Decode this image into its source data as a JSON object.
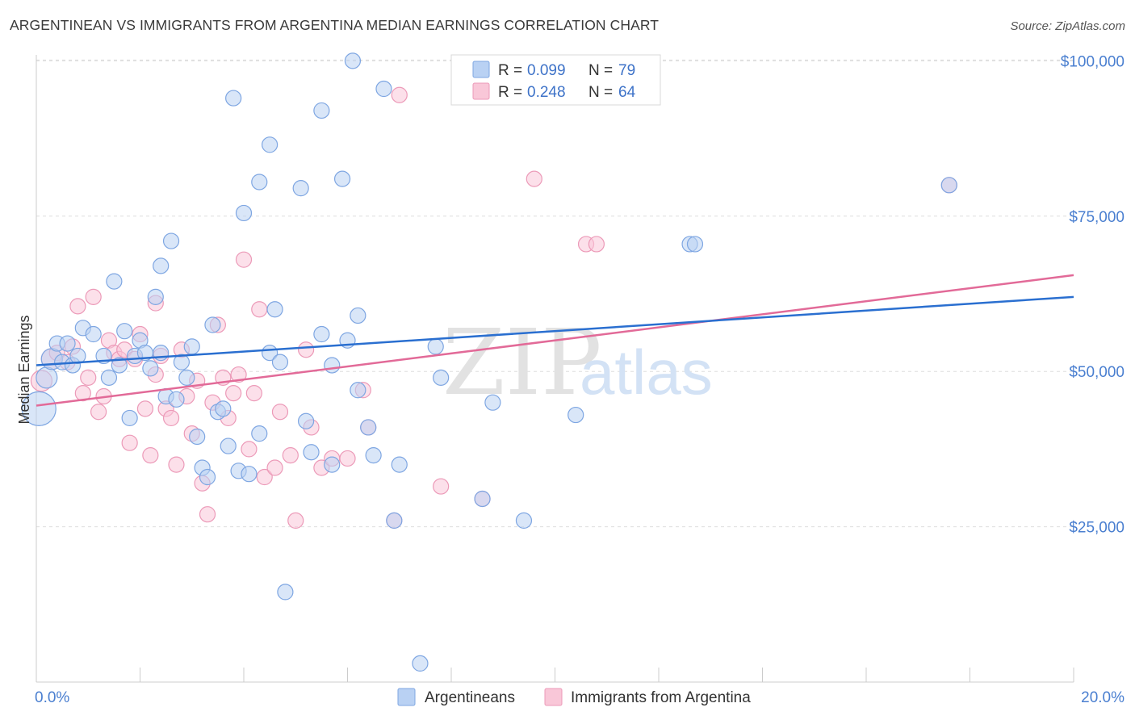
{
  "header": {
    "title": "ARGENTINEAN VS IMMIGRANTS FROM ARGENTINA MEDIAN EARNINGS CORRELATION CHART",
    "source": "Source: ZipAtlas.com"
  },
  "watermark": {
    "zip": "ZIP",
    "atlas": "atlas"
  },
  "colors": {
    "blue_fill": "#b9d1f3",
    "blue_stroke": "#7ea6e2",
    "blue_line": "#2a6fd0",
    "pink_fill": "#f9c7d8",
    "pink_stroke": "#ec9ab8",
    "pink_line": "#e26a98",
    "tick_text": "#4a7fd0",
    "grid": "#dddddd"
  },
  "legend": {
    "rows": [
      {
        "r_label": "R =",
        "r_value": "0.099",
        "n_label": "N =",
        "n_value": "79"
      },
      {
        "r_label": "R =",
        "r_value": "0.248",
        "n_label": "N =",
        "n_value": "64"
      }
    ]
  },
  "chart_data": {
    "type": "scatter",
    "title": "ARGENTINEAN VS IMMIGRANTS FROM ARGENTINA MEDIAN EARNINGS CORRELATION CHART",
    "xlabel": "",
    "ylabel": "Median Earnings",
    "xlim": [
      0,
      20
    ],
    "ylim": [
      0,
      102000
    ],
    "x_tick_labels": [
      "0.0%",
      "20.0%"
    ],
    "y_ticks": [
      25000,
      50000,
      75000,
      100000
    ],
    "y_tick_labels": [
      "$25,000",
      "$50,000",
      "$75,000",
      "$100,000"
    ],
    "grid": true,
    "series": [
      {
        "name": "Argentineans",
        "r": 0.099,
        "n": 79,
        "trend": {
          "x": [
            0,
            20
          ],
          "y": [
            51000,
            62000
          ]
        },
        "points": [
          [
            0.05,
            44000
          ],
          [
            0.2,
            49000
          ],
          [
            0.3,
            52000
          ],
          [
            0.4,
            54500
          ],
          [
            0.5,
            51500
          ],
          [
            0.6,
            54500
          ],
          [
            0.7,
            51000
          ],
          [
            0.8,
            52500
          ],
          [
            0.9,
            57000
          ],
          [
            1.1,
            56000
          ],
          [
            1.3,
            52500
          ],
          [
            1.4,
            49000
          ],
          [
            1.5,
            64500
          ],
          [
            1.6,
            51000
          ],
          [
            1.7,
            56500
          ],
          [
            1.8,
            42500
          ],
          [
            1.9,
            52500
          ],
          [
            2.0,
            55000
          ],
          [
            2.1,
            53000
          ],
          [
            2.2,
            50500
          ],
          [
            2.3,
            62000
          ],
          [
            2.4,
            53000
          ],
          [
            2.4,
            67000
          ],
          [
            2.5,
            46000
          ],
          [
            2.6,
            71000
          ],
          [
            2.7,
            45500
          ],
          [
            2.8,
            51500
          ],
          [
            2.9,
            49000
          ],
          [
            3.0,
            54000
          ],
          [
            3.1,
            39500
          ],
          [
            3.2,
            34500
          ],
          [
            3.3,
            33000
          ],
          [
            3.4,
            57500
          ],
          [
            3.5,
            43500
          ],
          [
            3.6,
            44000
          ],
          [
            3.7,
            38000
          ],
          [
            3.8,
            94000
          ],
          [
            3.9,
            34000
          ],
          [
            4.0,
            75500
          ],
          [
            4.1,
            33500
          ],
          [
            4.3,
            40000
          ],
          [
            4.3,
            80500
          ],
          [
            4.5,
            86500
          ],
          [
            4.5,
            53000
          ],
          [
            4.6,
            60000
          ],
          [
            4.7,
            51500
          ],
          [
            4.8,
            14500
          ],
          [
            5.1,
            79500
          ],
          [
            5.2,
            42000
          ],
          [
            5.3,
            37000
          ],
          [
            5.5,
            56000
          ],
          [
            5.5,
            92000
          ],
          [
            5.7,
            35000
          ],
          [
            5.7,
            51000
          ],
          [
            5.9,
            81000
          ],
          [
            6.0,
            55000
          ],
          [
            6.1,
            100000
          ],
          [
            6.2,
            47000
          ],
          [
            6.2,
            59000
          ],
          [
            6.4,
            41000
          ],
          [
            6.5,
            36500
          ],
          [
            6.7,
            95500
          ],
          [
            6.9,
            26000
          ],
          [
            7.0,
            35000
          ],
          [
            7.4,
            3000
          ],
          [
            7.7,
            54000
          ],
          [
            7.8,
            49000
          ],
          [
            8.6,
            29500
          ],
          [
            8.8,
            45000
          ],
          [
            9.4,
            26000
          ],
          [
            10.4,
            43000
          ],
          [
            12.6,
            70500
          ],
          [
            12.7,
            70500
          ],
          [
            17.6,
            80000
          ]
        ]
      },
      {
        "name": "Immigrants from Argentina",
        "r": 0.248,
        "n": 64,
        "trend": {
          "x": [
            0,
            20
          ],
          "y": [
            44500,
            65500
          ]
        },
        "points": [
          [
            0.1,
            48500
          ],
          [
            0.3,
            52000
          ],
          [
            0.4,
            53000
          ],
          [
            0.6,
            51500
          ],
          [
            0.7,
            54000
          ],
          [
            0.8,
            60500
          ],
          [
            0.9,
            46500
          ],
          [
            1.0,
            49000
          ],
          [
            1.1,
            62000
          ],
          [
            1.2,
            43500
          ],
          [
            1.3,
            46000
          ],
          [
            1.4,
            55000
          ],
          [
            1.5,
            53000
          ],
          [
            1.6,
            52000
          ],
          [
            1.7,
            53500
          ],
          [
            1.8,
            38500
          ],
          [
            1.9,
            52000
          ],
          [
            2.0,
            56000
          ],
          [
            2.1,
            44000
          ],
          [
            2.2,
            36500
          ],
          [
            2.3,
            49500
          ],
          [
            2.3,
            61000
          ],
          [
            2.4,
            52500
          ],
          [
            2.5,
            44000
          ],
          [
            2.6,
            42500
          ],
          [
            2.7,
            35000
          ],
          [
            2.8,
            53500
          ],
          [
            2.9,
            46000
          ],
          [
            3.0,
            40000
          ],
          [
            3.1,
            48500
          ],
          [
            3.2,
            32000
          ],
          [
            3.3,
            27000
          ],
          [
            3.4,
            45000
          ],
          [
            3.5,
            57500
          ],
          [
            3.6,
            49000
          ],
          [
            3.7,
            42500
          ],
          [
            3.8,
            46500
          ],
          [
            3.9,
            49500
          ],
          [
            4.0,
            68000
          ],
          [
            4.1,
            37500
          ],
          [
            4.2,
            46500
          ],
          [
            4.3,
            60000
          ],
          [
            4.4,
            33000
          ],
          [
            4.6,
            34500
          ],
          [
            4.7,
            43500
          ],
          [
            4.9,
            36500
          ],
          [
            5.0,
            26000
          ],
          [
            5.2,
            53500
          ],
          [
            5.3,
            41000
          ],
          [
            5.5,
            34500
          ],
          [
            5.7,
            36000
          ],
          [
            6.0,
            36000
          ],
          [
            6.3,
            47000
          ],
          [
            6.4,
            41000
          ],
          [
            6.9,
            26000
          ],
          [
            7.0,
            94500
          ],
          [
            7.8,
            31500
          ],
          [
            8.6,
            29500
          ],
          [
            9.6,
            81000
          ],
          [
            10.6,
            70500
          ],
          [
            10.8,
            70500
          ],
          [
            17.6,
            80000
          ]
        ]
      }
    ]
  }
}
